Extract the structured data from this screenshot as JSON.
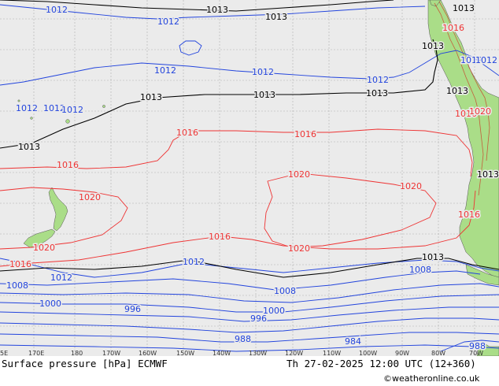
{
  "map": {
    "title": "Surface pressure [hPa] ECMWF",
    "valid_time": "Th 27-02-2025 12:00 UTC (12+360)",
    "credit": "©weatheronline.co.uk",
    "longitude_labels": [
      "5E",
      "170E",
      "180",
      "170W",
      "160W",
      "150W",
      "140W",
      "130W",
      "120W",
      "110W",
      "100W",
      "90W",
      "80W",
      "70W"
    ],
    "colors": {
      "ocean": "#ebebeb",
      "land": "#aadd88",
      "grid": "#b0b0b0",
      "low": "#2244dd",
      "high": "#ee3333",
      "ref": "#000000"
    },
    "contour_labels": [
      {
        "text": "1012",
        "kind": "low"
      },
      {
        "text": "1013",
        "kind": "ref"
      },
      {
        "text": "1012",
        "kind": "low"
      },
      {
        "text": "1013",
        "kind": "ref"
      },
      {
        "text": "1012",
        "kind": "low"
      },
      {
        "text": "1013",
        "kind": "ref"
      },
      {
        "text": "1012",
        "kind": "low"
      },
      {
        "text": "1012",
        "kind": "low"
      },
      {
        "text": "1012",
        "kind": "low"
      },
      {
        "text": "1012",
        "kind": "low"
      },
      {
        "text": "1013",
        "kind": "ref"
      },
      {
        "text": "1013",
        "kind": "ref"
      },
      {
        "text": "1012",
        "kind": "low"
      },
      {
        "text": "1012",
        "kind": "low"
      },
      {
        "text": "1013",
        "kind": "ref"
      },
      {
        "text": "1013",
        "kind": "ref"
      },
      {
        "text": "1013",
        "kind": "ref"
      },
      {
        "text": "1013",
        "kind": "ref"
      },
      {
        "text": "1016",
        "kind": "high"
      },
      {
        "text": "1016",
        "kind": "high"
      },
      {
        "text": "1016",
        "kind": "high"
      },
      {
        "text": "1020",
        "kind": "high"
      },
      {
        "text": "1020",
        "kind": "high"
      },
      {
        "text": "1020",
        "kind": "high"
      },
      {
        "text": "1020",
        "kind": "high"
      },
      {
        "text": "1020",
        "kind": "high"
      },
      {
        "text": "1016",
        "kind": "high"
      },
      {
        "text": "1016",
        "kind": "high"
      },
      {
        "text": "1016",
        "kind": "high"
      },
      {
        "text": "1012",
        "kind": "low"
      },
      {
        "text": "1012",
        "kind": "low"
      },
      {
        "text": "1013",
        "kind": "ref"
      },
      {
        "text": "1008",
        "kind": "low"
      },
      {
        "text": "1008",
        "kind": "low"
      },
      {
        "text": "1008",
        "kind": "low"
      },
      {
        "text": "1000",
        "kind": "low"
      },
      {
        "text": "1000",
        "kind": "low"
      },
      {
        "text": "996",
        "kind": "low"
      },
      {
        "text": "996",
        "kind": "low"
      },
      {
        "text": "988",
        "kind": "low"
      },
      {
        "text": "984",
        "kind": "low"
      },
      {
        "text": "988",
        "kind": "low"
      },
      {
        "text": "1016",
        "kind": "high"
      },
      {
        "text": "1016",
        "kind": "high"
      },
      {
        "text": "1020",
        "kind": "high"
      },
      {
        "text": "1012",
        "kind": "low"
      },
      {
        "text": "1013",
        "kind": "ref"
      }
    ]
  }
}
